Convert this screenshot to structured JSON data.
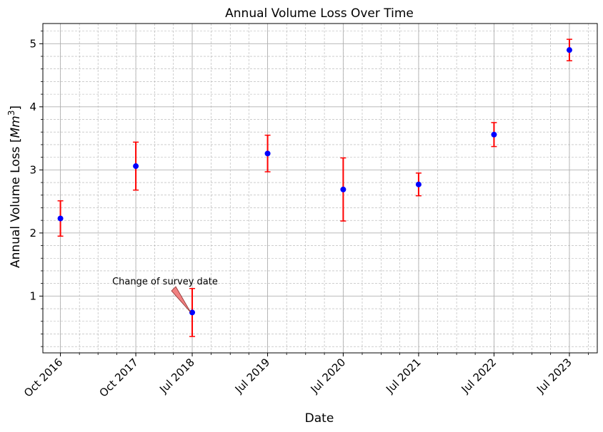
{
  "chart_data": {
    "type": "scatter",
    "title": "Annual Volume Loss Over Time",
    "xlabel": "Date",
    "ylabel_main": "Annual Volume Loss ",
    "ylabel_unit_prefix": "[",
    "ylabel_unit_sym": "Mm",
    "ylabel_unit_exp": "3",
    "ylabel_unit_suffix": "]",
    "x": [
      "2016-10-01",
      "2017-10-01",
      "2018-07-01",
      "2019-07-01",
      "2020-07-01",
      "2021-07-01",
      "2022-07-01",
      "2023-07-01"
    ],
    "x_tick_labels": [
      "Oct 2016",
      "Oct 2017",
      "Jul 2018",
      "Jul 2019",
      "Jul 2020",
      "Jul 2021",
      "Jul 2022",
      "Jul 2023"
    ],
    "y": [
      2.23,
      3.06,
      0.74,
      3.26,
      2.69,
      2.77,
      3.56,
      4.9
    ],
    "yerr": [
      0.28,
      0.38,
      0.38,
      0.29,
      0.5,
      0.18,
      0.19,
      0.17
    ],
    "yticks": [
      1,
      2,
      3,
      4,
      5
    ],
    "ylim": [
      0.1,
      5.32
    ],
    "xlim": [
      "2016-07-08",
      "2023-11-13"
    ],
    "grid": true,
    "marker_color": "#0000ff",
    "errorbar_color": "#ff0000",
    "annotation": {
      "text": "Change of survey date",
      "target_x": "2018-07-01",
      "target_y": 0.74,
      "arrow_color": "#f08080"
    }
  }
}
